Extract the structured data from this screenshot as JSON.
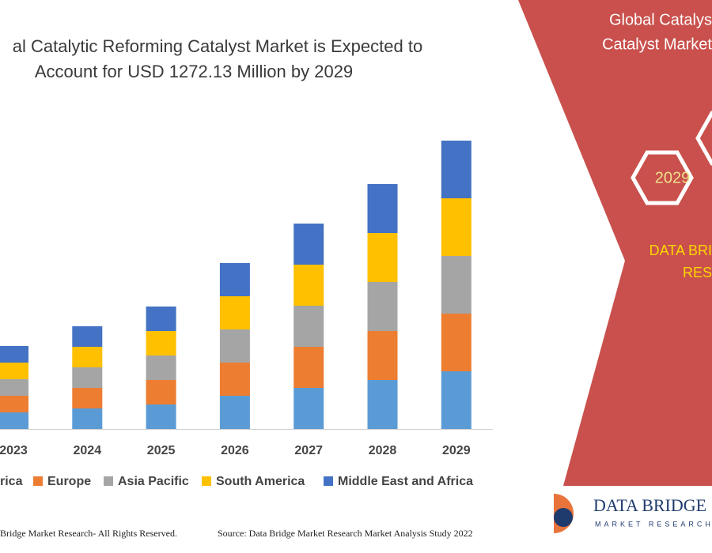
{
  "chart_data": {
    "type": "stacked-bar",
    "title": [
      "al Catalytic Reforming Catalyst Market is Expected to",
      "Account for USD 1272.13 Million by 2029"
    ],
    "categories": [
      "2023",
      "2024",
      "2025",
      "2026",
      "2027",
      "2028",
      "2029"
    ],
    "series": [
      {
        "name": "rica",
        "color": "#5b9bd5",
        "values": [
          21,
          26,
          31,
          42,
          52,
          62,
          73
        ]
      },
      {
        "name": "Europe",
        "color": "#ed7d31",
        "values": [
          21,
          26,
          31,
          42,
          52,
          62,
          73
        ]
      },
      {
        "name": "Asia Pacific",
        "color": "#a5a5a5",
        "values": [
          21,
          26,
          31,
          42,
          52,
          62,
          73
        ]
      },
      {
        "name": "South America",
        "color": "#ffc000",
        "values": [
          21,
          26,
          31,
          42,
          52,
          62,
          73
        ]
      },
      {
        "name": "Middle East and Africa",
        "color": "#4472c4",
        "values": [
          21,
          26,
          31,
          42,
          52,
          62,
          73
        ]
      }
    ]
  },
  "side_panel": {
    "title": [
      "Global Catalys",
      "Catalyst Market"
    ],
    "year": "2029",
    "brand": [
      "DATA BRI",
      "RES"
    ]
  },
  "logo": {
    "name": "DATA BRIDGE",
    "tagline": "MARKET RESEARCH"
  },
  "footer": {
    "rights": "Bridge Market Research- All Rights Reserved.",
    "source": "Source: Data Bridge Market Research Market Analysis Study 2022"
  }
}
